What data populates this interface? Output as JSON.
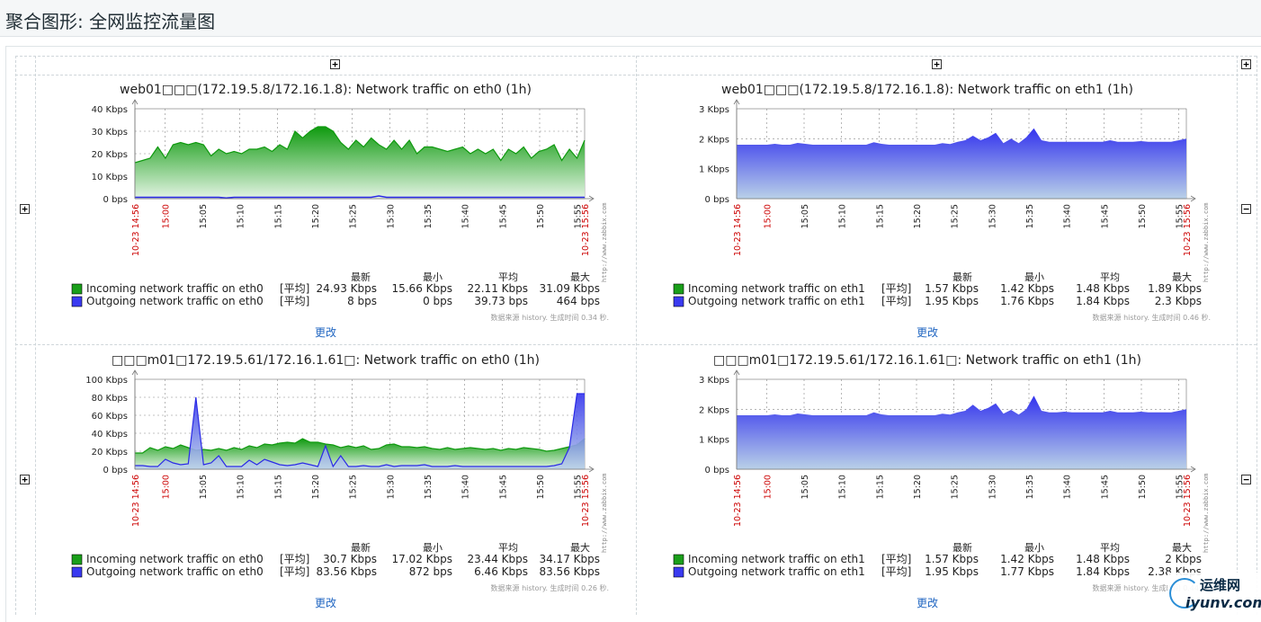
{
  "page": {
    "title": "聚合图形: 全网监控流量图",
    "change_label": "更改"
  },
  "legend_headers": [
    "最新",
    "最小",
    "平均",
    "最大"
  ],
  "time_axis": {
    "start": "10-23 14:56",
    "end": "10-23 15:56",
    "ticks": [
      "15:00",
      "15:05",
      "15:10",
      "15:15",
      "15:20",
      "15:25",
      "15:30",
      "15:35",
      "15:40",
      "15:45",
      "15:50",
      "15:55"
    ]
  },
  "side_text": "http://www.zabbix.com",
  "graphs": [
    {
      "title": "web01□□□(172.19.5.8/172.16.1.8): Network traffic on eth0 (1h)",
      "y_ticks": [
        "40 Kbps",
        "30 Kbps",
        "20 Kbps",
        "10 Kbps",
        "0 bps"
      ],
      "ymax": 40,
      "incoming": [
        16,
        17,
        18,
        23,
        18,
        24,
        25,
        24,
        25,
        24,
        19,
        22,
        20,
        21,
        20,
        22,
        22,
        23,
        21,
        24,
        22,
        30,
        27,
        30,
        32,
        32,
        30,
        25,
        22,
        26,
        23,
        27,
        24,
        22,
        26,
        22,
        26,
        20,
        23,
        23,
        22,
        21,
        22,
        23,
        20,
        22,
        20,
        22,
        17,
        22,
        20,
        23,
        18,
        21,
        22,
        24,
        17,
        22,
        18,
        26
      ],
      "outgoing": [
        0.6,
        0.6,
        0.6,
        0.6,
        0.6,
        0.6,
        0.6,
        0.6,
        0.6,
        0.6,
        0.6,
        0.6,
        0.3,
        0.6,
        0.6,
        0.6,
        0.6,
        0.6,
        0.6,
        0.6,
        0.6,
        0.6,
        0.6,
        0.6,
        0.6,
        0.6,
        0.6,
        0.6,
        0.6,
        0.6,
        0.6,
        0.6,
        1.2,
        0.6,
        0.6,
        0.6,
        0.6,
        0.6,
        0.6,
        0.6,
        0.6,
        0.6,
        0.6,
        0.6,
        0.6,
        0.6,
        0.6,
        0.6,
        0.6,
        0.6,
        0.6,
        0.6,
        0.6,
        0.6,
        0.6,
        0.6,
        0.6,
        0.6,
        0.6,
        0.6
      ],
      "legend": [
        {
          "label": "Incoming network traffic on eth0",
          "func": "[平均]",
          "last": "24.93 Kbps",
          "min": "15.66 Kbps",
          "avg": "22.11 Kbps",
          "max": "31.09 Kbps",
          "color": "#1a9f1a"
        },
        {
          "label": "Outgoing network traffic on eth0",
          "func": "[平均]",
          "last": "8 bps",
          "min": "0 bps",
          "avg": "39.73 bps",
          "max": "464 bps",
          "color": "#3a3af0"
        }
      ],
      "note": "数据来源 history. 生成时间 0.34 秒."
    },
    {
      "title": "web01□□□(172.19.5.8/172.16.1.8): Network traffic on eth1 (1h)",
      "y_ticks": [
        "3 Kbps",
        "2 Kbps",
        "1 Kbps",
        "0 bps"
      ],
      "ymax": 3,
      "incoming": [
        1.55,
        1.55,
        1.55,
        1.55,
        1.55,
        1.58,
        1.55,
        1.55,
        1.6,
        1.55,
        1.55,
        1.55,
        1.55,
        1.55,
        1.55,
        1.55,
        1.55,
        1.55,
        1.6,
        1.55,
        1.55,
        1.55,
        1.55,
        1.55,
        1.55,
        1.55,
        1.55,
        1.6,
        1.55,
        1.6,
        1.7,
        1.8,
        1.7,
        1.8,
        1.9,
        1.6,
        1.7,
        1.6,
        1.8,
        1.9,
        1.7,
        1.7,
        1.7,
        1.7,
        1.7,
        1.7,
        1.7,
        1.7,
        1.7,
        1.75,
        1.7,
        1.7,
        1.7,
        1.7,
        1.7,
        1.7,
        1.7,
        1.7,
        1.75,
        1.8
      ],
      "outgoing": [
        1.8,
        1.8,
        1.8,
        1.8,
        1.8,
        1.83,
        1.8,
        1.8,
        1.86,
        1.83,
        1.8,
        1.8,
        1.8,
        1.8,
        1.8,
        1.8,
        1.8,
        1.8,
        1.88,
        1.83,
        1.8,
        1.8,
        1.8,
        1.8,
        1.8,
        1.8,
        1.8,
        1.85,
        1.82,
        1.9,
        1.95,
        2.1,
        1.95,
        2.05,
        2.2,
        1.85,
        2.0,
        1.85,
        2.05,
        2.35,
        1.95,
        1.9,
        1.9,
        1.9,
        1.9,
        1.9,
        1.9,
        1.9,
        1.9,
        1.95,
        1.9,
        1.9,
        1.9,
        1.92,
        1.9,
        1.9,
        1.9,
        1.9,
        1.95,
        2.0
      ],
      "legend": [
        {
          "label": "Incoming network traffic on eth1",
          "func": "[平均]",
          "last": "1.57 Kbps",
          "min": "1.42 Kbps",
          "avg": "1.48 Kbps",
          "max": "1.89 Kbps",
          "color": "#1a9f1a"
        },
        {
          "label": "Outgoing network traffic on eth1",
          "func": "[平均]",
          "last": "1.95 Kbps",
          "min": "1.76 Kbps",
          "avg": "1.84 Kbps",
          "max": "2.3 Kbps",
          "color": "#3a3af0"
        }
      ],
      "note": "数据来源 history. 生成时间 0.46 秒."
    },
    {
      "title": "□□□m01□172.19.5.61/172.16.1.61□: Network traffic on eth0 (1h)",
      "y_ticks": [
        "100 Kbps",
        "80 Kbps",
        "60 Kbps",
        "40 Kbps",
        "20 Kbps",
        "0 bps"
      ],
      "ymax": 100,
      "incoming": [
        18,
        18,
        24,
        21,
        25,
        23,
        27,
        24,
        21,
        22,
        21,
        23,
        21,
        24,
        22,
        26,
        24,
        28,
        27,
        29,
        30,
        29,
        34,
        30,
        30,
        28,
        27,
        24,
        26,
        24,
        26,
        22,
        23,
        27,
        28,
        25,
        25,
        24,
        25,
        23,
        22,
        24,
        22,
        23,
        24,
        23,
        22,
        23,
        21,
        23,
        22,
        24,
        23,
        22,
        20,
        21,
        23,
        25,
        27,
        34
      ],
      "outgoing": [
        4,
        4,
        3,
        3,
        11,
        7,
        5,
        6,
        80,
        5,
        7,
        15,
        3,
        3,
        3,
        10,
        5,
        11,
        8,
        5,
        4,
        5,
        7,
        5,
        3,
        26,
        3,
        15,
        3,
        3,
        4,
        3,
        3,
        5,
        3,
        4,
        4,
        4,
        5,
        3,
        3,
        3,
        4,
        3,
        3,
        3,
        3,
        3,
        3,
        3,
        3,
        3,
        3,
        3,
        3,
        4,
        6,
        24,
        84,
        84
      ],
      "legend": [
        {
          "label": "Incoming network traffic on eth0",
          "func": "[平均]",
          "last": "30.7 Kbps",
          "min": "17.02 Kbps",
          "avg": "23.44 Kbps",
          "max": "34.17 Kbps",
          "color": "#1a9f1a"
        },
        {
          "label": "Outgoing network traffic on eth0",
          "func": "[平均]",
          "last": "83.56 Kbps",
          "min": "872 bps",
          "avg": "6.46 Kbps",
          "max": "83.56 Kbps",
          "color": "#3a3af0"
        }
      ],
      "note": "数据来源 history. 生成时间 0.26 秒."
    },
    {
      "title": "□□□m01□172.19.5.61/172.16.1.61□: Network traffic on eth1 (1h)",
      "y_ticks": [
        "3 Kbps",
        "2 Kbps",
        "1 Kbps",
        "0 bps"
      ],
      "ymax": 3,
      "incoming": [
        1.55,
        1.55,
        1.55,
        1.55,
        1.55,
        1.58,
        1.55,
        1.55,
        1.6,
        1.55,
        1.55,
        1.55,
        1.55,
        1.55,
        1.55,
        1.55,
        1.55,
        1.55,
        1.6,
        1.55,
        1.55,
        1.55,
        1.55,
        1.55,
        1.55,
        1.55,
        1.55,
        1.6,
        1.55,
        1.6,
        1.7,
        1.8,
        1.7,
        1.8,
        1.9,
        1.6,
        1.7,
        1.6,
        1.8,
        2.1,
        1.7,
        1.7,
        1.7,
        1.7,
        1.7,
        1.7,
        1.7,
        1.7,
        1.7,
        1.75,
        1.7,
        1.7,
        1.7,
        1.7,
        1.7,
        1.7,
        1.7,
        1.7,
        1.75,
        1.8
      ],
      "outgoing": [
        1.8,
        1.8,
        1.8,
        1.8,
        1.8,
        1.83,
        1.8,
        1.8,
        1.86,
        1.83,
        1.8,
        1.8,
        1.8,
        1.8,
        1.8,
        1.8,
        1.8,
        1.8,
        1.9,
        1.83,
        1.8,
        1.8,
        1.8,
        1.8,
        1.8,
        1.8,
        1.8,
        1.85,
        1.82,
        1.9,
        1.95,
        2.15,
        1.95,
        2.05,
        2.2,
        1.85,
        1.98,
        1.82,
        2.0,
        2.45,
        1.95,
        1.9,
        1.9,
        1.92,
        1.9,
        1.9,
        1.9,
        1.9,
        1.9,
        1.95,
        1.9,
        1.9,
        1.9,
        1.92,
        1.9,
        1.9,
        1.9,
        1.9,
        1.95,
        2.0
      ],
      "legend": [
        {
          "label": "Incoming network traffic on eth1",
          "func": "[平均]",
          "last": "1.57 Kbps",
          "min": "1.42 Kbps",
          "avg": "1.48 Kbps",
          "max": "2 Kbps",
          "color": "#1a9f1a"
        },
        {
          "label": "Outgoing network traffic on eth1",
          "func": "[平均]",
          "last": "1.95 Kbps",
          "min": "1.77 Kbps",
          "avg": "1.84 Kbps",
          "max": "2.38 Kbps",
          "color": "#3a3af0"
        }
      ],
      "note": "数据来源 history. 生成时间 0.44 秒."
    }
  ],
  "watermark": {
    "line1": "运维网",
    "line2": "iyunv.com"
  }
}
